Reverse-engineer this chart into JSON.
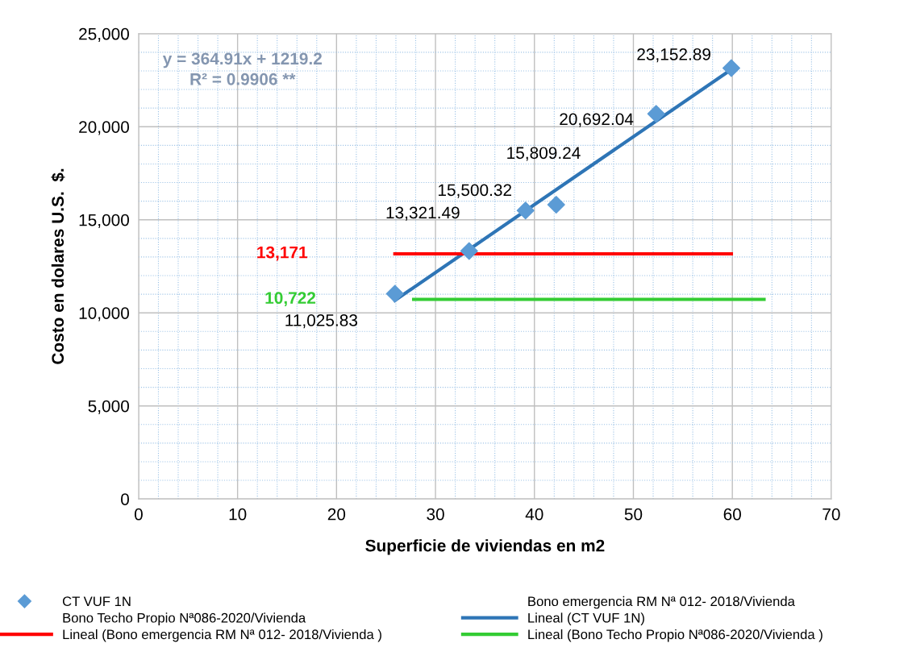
{
  "chart_data": {
    "type": "scatter",
    "xlabel": "Superficie de viviendas en m2",
    "ylabel": "Costo en dolares U.S.  $.",
    "xlim": [
      0,
      70
    ],
    "xticks": [
      0,
      {
        "value": 2,
        "label": null
      },
      {
        "value": 4,
        "label": null
      },
      {
        "value": 6,
        "label": null
      },
      {
        "value": 8,
        "label": null
      },
      10,
      {
        "value": 12,
        "label": null
      },
      {
        "value": 14,
        "label": null
      },
      {
        "value": 16,
        "label": null
      },
      {
        "value": 18,
        "label": null
      },
      20,
      {
        "value": 22,
        "label": null
      },
      {
        "value": 24,
        "label": null
      },
      {
        "value": 26,
        "label": null
      },
      {
        "value": 28,
        "label": null
      },
      30,
      {
        "value": 32,
        "label": null
      },
      {
        "value": 34,
        "label": null
      },
      {
        "value": 36,
        "label": null
      },
      {
        "value": 38,
        "label": null
      },
      40,
      {
        "value": 42,
        "label": null
      },
      {
        "value": 44,
        "label": null
      },
      {
        "value": 46,
        "label": null
      },
      {
        "value": 48,
        "label": null
      },
      50,
      {
        "value": 52,
        "label": null
      },
      {
        "value": 54,
        "label": null
      },
      {
        "value": 56,
        "label": null
      },
      {
        "value": 58,
        "label": null
      },
      60,
      {
        "value": 62,
        "label": null
      },
      {
        "value": 64,
        "label": null
      },
      {
        "value": 66,
        "label": null
      },
      {
        "value": 68,
        "label": null
      },
      70
    ],
    "ylim": [
      0,
      25000
    ],
    "yticks": [
      0,
      {
        "value": 1000,
        "label": null
      },
      {
        "value": 2000,
        "label": null
      },
      {
        "value": 3000,
        "label": null
      },
      {
        "value": 4000,
        "label": null
      },
      {
        "value": 5000,
        "label": "5,000"
      },
      {
        "value": 6000,
        "label": null
      },
      {
        "value": 7000,
        "label": null
      },
      {
        "value": 8000,
        "label": null
      },
      {
        "value": 9000,
        "label": null
      },
      {
        "value": 10000,
        "label": "10,000"
      },
      {
        "value": 11000,
        "label": null
      },
      {
        "value": 12000,
        "label": null
      },
      {
        "value": 13000,
        "label": null
      },
      {
        "value": 14000,
        "label": null
      },
      {
        "value": 15000,
        "label": "15,000"
      },
      {
        "value": 16000,
        "label": null
      },
      {
        "value": 17000,
        "label": null
      },
      {
        "value": 18000,
        "label": null
      },
      {
        "value": 19000,
        "label": null
      },
      {
        "value": 20000,
        "label": "20,000"
      },
      {
        "value": 21000,
        "label": null
      },
      {
        "value": 22000,
        "label": null
      },
      {
        "value": 23000,
        "label": null
      },
      {
        "value": 24000,
        "label": null
      },
      {
        "value": 25000,
        "label": "25,000"
      }
    ],
    "grid": true,
    "legend": "bottom",
    "marker": "diamond",
    "series": [
      {
        "name": "CT VUF 1N",
        "color": "#5b9bd5",
        "x": [
          25.9,
          33.4,
          39.1,
          42.2,
          52.3,
          59.9
        ],
        "values": [
          11025.83,
          13321.49,
          15500.32,
          15809.24,
          20692.04,
          23152.89
        ],
        "value_labels": [
          "11,025.83",
          "13,321.49",
          "15,500.32",
          "15,809.24",
          "20,692.04",
          "23,152.89"
        ]
      },
      {
        "name": "Bono emergencia RM Nª 012- 2018/Vivienda",
        "type": "scatter",
        "marker": "none"
      },
      {
        "name": "Bono Techo Propio Nª086-2020/Vivienda",
        "type": "scatter",
        "marker": "none"
      },
      {
        "name": "Lineal (CT VUF 1N)",
        "type": "line",
        "marker": "none",
        "color": "#2e75b6",
        "x": [
          25.9,
          59.9
        ],
        "values": [
          10670,
          23077
        ]
      },
      {
        "name": "Lineal (Bono emergencia RM Nª 012- 2018/Vivienda )",
        "type": "line",
        "marker": "none",
        "color": "#ff0000",
        "x": [
          25.9,
          59.9
        ],
        "values": [
          13171,
          13171
        ]
      },
      {
        "name": "Lineal (Bono Techo Propio Nª086-2020/Vivienda )",
        "type": "line",
        "marker": "none",
        "color": "#33cc33",
        "x": [
          27.8,
          63.2
        ],
        "values": [
          10722,
          10722
        ]
      }
    ],
    "annotations": [
      "y = 364.91x + 1219.2\nR² = 0.9906 **",
      "13,171",
      "10,722"
    ]
  }
}
